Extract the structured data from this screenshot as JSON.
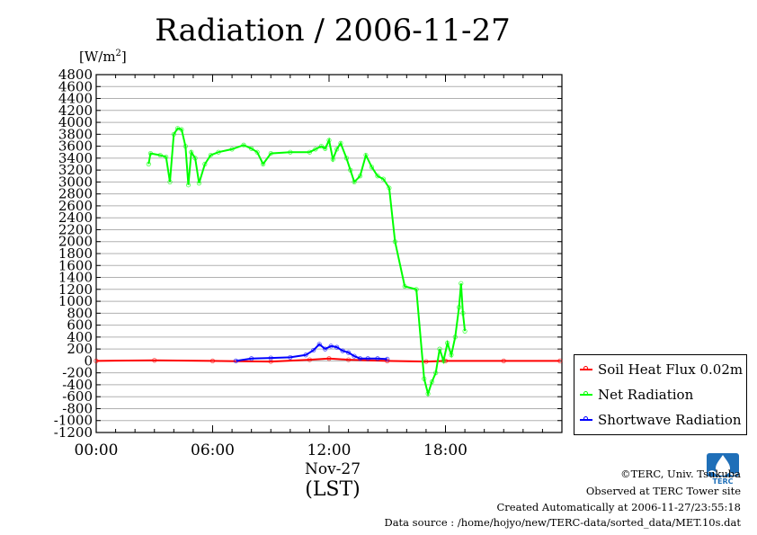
{
  "header": {
    "title": "Radiation / 2006-11-27",
    "unit_label": "[W/m",
    "unit_sup": "2",
    "unit_close": "]"
  },
  "axis": {
    "x_date": "Nov-27",
    "x_unit": "(LST)"
  },
  "footer": {
    "copyright": "©TERC, Univ. Tsukuba",
    "observed": "Observed at TERC Tower site",
    "created": "Created Automatically at 2006-11-27/23:55:18",
    "source": "Data source : /home/hojyo/new/TERC-data/sorted_data/MET.10s.dat"
  },
  "legend": [
    {
      "label": "Soil Heat Flux 0.02m",
      "color": "#ff0000"
    },
    {
      "label": "Net Radiation",
      "color": "#00ff00"
    },
    {
      "label": "Shortwave Radiation",
      "color": "#0000ff"
    }
  ],
  "logo": {
    "icon": "terc-logo-icon",
    "text": "TERC",
    "color": "#1f6fb8"
  },
  "chart_data": {
    "type": "line",
    "title": "Radiation / 2006-11-27",
    "ylabel": "[W/m2]",
    "xlabel": "Nov-27 (LST)",
    "xlim": [
      0,
      24
    ],
    "ylim": [
      -1200,
      4800
    ],
    "yticks": [
      -1200,
      -1000,
      -800,
      -600,
      -400,
      -200,
      0,
      200,
      400,
      600,
      800,
      1000,
      1200,
      1400,
      1600,
      1800,
      2000,
      2200,
      2400,
      2600,
      2800,
      3000,
      3200,
      3400,
      3600,
      3800,
      4000,
      4200,
      4400,
      4600,
      4800
    ],
    "xticks": [
      0,
      6,
      12,
      18
    ],
    "xtick_labels": [
      "00:00",
      "06:00",
      "12:00",
      "18:00"
    ],
    "grid": true,
    "legend_position": "right",
    "series": [
      {
        "name": "Soil Heat Flux 0.02m",
        "color": "#ff0000",
        "x": [
          0,
          3,
          6,
          9,
          11,
          12,
          13,
          15,
          17,
          18,
          21,
          23.9
        ],
        "y": [
          0,
          10,
          0,
          -10,
          20,
          40,
          20,
          0,
          -10,
          0,
          0,
          0
        ]
      },
      {
        "name": "Net Radiation",
        "color": "#00ff00",
        "x": [
          2.7,
          2.8,
          3.3,
          3.6,
          3.8,
          4.0,
          4.2,
          4.4,
          4.6,
          4.75,
          4.9,
          5.1,
          5.3,
          5.6,
          5.9,
          6.3,
          7.0,
          7.6,
          8.0,
          8.3,
          8.6,
          9.0,
          10.0,
          11.0,
          11.3,
          11.6,
          11.8,
          12.0,
          12.2,
          12.4,
          12.6,
          12.9,
          13.1,
          13.3,
          13.6,
          13.9,
          14.2,
          14.5,
          14.8,
          15.1,
          15.4,
          15.9,
          16.5,
          16.9,
          17.1,
          17.3,
          17.5,
          17.7,
          17.9,
          18.1,
          18.3,
          18.5,
          18.7,
          18.8,
          18.9,
          19.0
        ],
        "y": [
          3300,
          3480,
          3450,
          3420,
          3000,
          3800,
          3900,
          3880,
          3600,
          2950,
          3500,
          3400,
          2980,
          3300,
          3450,
          3500,
          3550,
          3620,
          3560,
          3500,
          3300,
          3480,
          3500,
          3500,
          3550,
          3600,
          3560,
          3700,
          3380,
          3550,
          3650,
          3400,
          3200,
          3000,
          3100,
          3450,
          3250,
          3100,
          3050,
          2900,
          2000,
          1250,
          1200,
          -300,
          -550,
          -350,
          -200,
          200,
          0,
          300,
          100,
          400,
          900,
          1300,
          800,
          500
        ]
      },
      {
        "name": "Shortwave Radiation",
        "color": "#0000ff",
        "x": [
          7.2,
          8.0,
          9.0,
          10.0,
          10.8,
          11.2,
          11.5,
          11.8,
          12.1,
          12.4,
          12.7,
          13.0,
          13.3,
          13.6,
          14.0,
          14.5,
          15.0
        ],
        "y": [
          0,
          40,
          50,
          60,
          100,
          180,
          280,
          200,
          250,
          230,
          170,
          140,
          80,
          40,
          40,
          40,
          30
        ]
      }
    ]
  }
}
